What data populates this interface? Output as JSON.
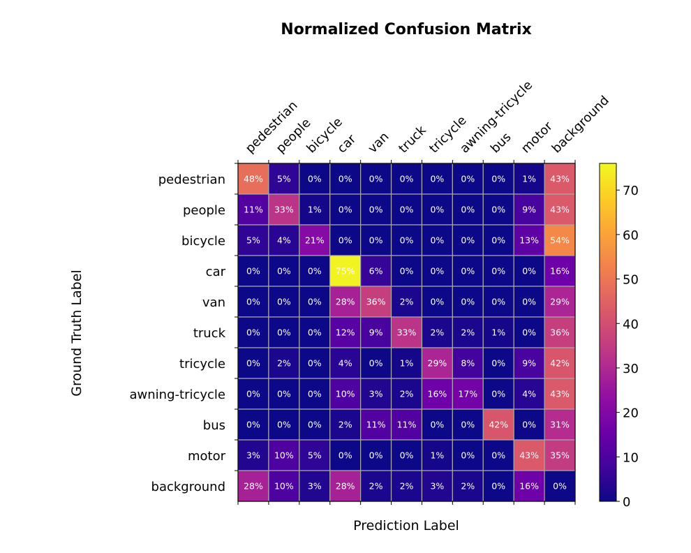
{
  "chart_data": {
    "type": "heatmap",
    "title": "Normalized Confusion Matrix",
    "xlabel": "Prediction Label",
    "ylabel": "Ground Truth Label",
    "x_categories": [
      "pedestrian",
      "people",
      "bicycle",
      "car",
      "van",
      "truck",
      "tricycle",
      "awning-tricycle",
      "bus",
      "motor",
      "background"
    ],
    "y_categories": [
      "pedestrian",
      "people",
      "bicycle",
      "car",
      "van",
      "truck",
      "tricycle",
      "awning-tricycle",
      "bus",
      "motor",
      "background"
    ],
    "values": [
      [
        48,
        5,
        0,
        0,
        0,
        0,
        0,
        0,
        0,
        1,
        43
      ],
      [
        11,
        33,
        1,
        0,
        0,
        0,
        0,
        0,
        0,
        9,
        43
      ],
      [
        5,
        4,
        21,
        0,
        0,
        0,
        0,
        0,
        0,
        13,
        54
      ],
      [
        0,
        0,
        0,
        75,
        6,
        0,
        0,
        0,
        0,
        0,
        16
      ],
      [
        0,
        0,
        0,
        28,
        36,
        2,
        0,
        0,
        0,
        0,
        29
      ],
      [
        0,
        0,
        0,
        12,
        9,
        33,
        2,
        2,
        1,
        0,
        36
      ],
      [
        0,
        2,
        0,
        4,
        0,
        1,
        29,
        8,
        0,
        9,
        42
      ],
      [
        0,
        0,
        0,
        10,
        3,
        2,
        16,
        17,
        0,
        4,
        43
      ],
      [
        0,
        0,
        0,
        2,
        11,
        11,
        0,
        0,
        42,
        0,
        31
      ],
      [
        3,
        10,
        5,
        0,
        0,
        0,
        1,
        0,
        0,
        43,
        35
      ],
      [
        28,
        10,
        3,
        28,
        2,
        2,
        3,
        2,
        0,
        16,
        0
      ]
    ],
    "value_suffix": "%",
    "colormap": "plasma",
    "colorbar": {
      "range": [
        0,
        76
      ],
      "ticks": [
        0,
        10,
        20,
        30,
        40,
        50,
        60,
        70
      ]
    },
    "grid": true,
    "gridline_color": "#a9a9a9",
    "cell_text_color": "#ffffff"
  }
}
